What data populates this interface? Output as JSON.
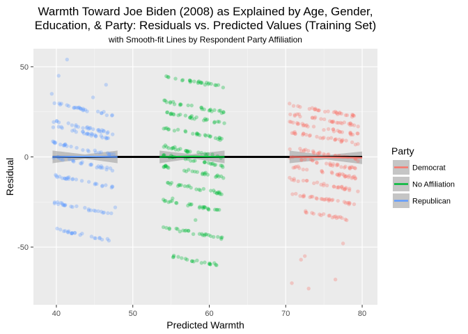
{
  "chart_data": {
    "type": "scatter",
    "title_lines": [
      "Warmth Toward Joe Biden (2008) as Explained by Age, Gender,",
      "Education, & Party: Residuals vs. Predicted Values (Training Set)"
    ],
    "subtitle": "with Smooth-fit Lines by Respondent Party Affiliation",
    "xlabel": "Predicted Warmth",
    "ylabel": "Residual",
    "xlim": [
      37,
      82
    ],
    "ylim": [
      -82,
      60
    ],
    "x_ticks": [
      40,
      50,
      60,
      70,
      80
    ],
    "y_ticks": [
      -50,
      0,
      50
    ],
    "x_tick_labels": [
      "40",
      "50",
      "60",
      "70",
      "80"
    ],
    "y_tick_labels": [
      "-50",
      "0",
      "50"
    ],
    "grid": true,
    "legend": {
      "title": "Party",
      "position": "right",
      "entries": [
        "Democrat",
        "No Affiliation",
        "Republican"
      ]
    },
    "reference_line": {
      "y": 0,
      "color": "#000000"
    },
    "series": [
      {
        "name": "Democrat",
        "color": "#F8766D",
        "x_range": [
          70.5,
          80
        ],
        "smooth": [
          [
            70.5,
            0
          ],
          [
            75,
            -0.2
          ],
          [
            80,
            -0.5
          ]
        ],
        "band_halfwidth": [
          3.5,
          1.2,
          3.5
        ],
        "clusters": [
          {
            "x0": 70.5,
            "x1": 79.5,
            "y0": 29,
            "slope": -0.75
          },
          {
            "x0": 70.5,
            "x1": 79.5,
            "y0": 24,
            "slope": -0.75
          },
          {
            "x0": 70.5,
            "x1": 79.5,
            "y0": 19,
            "slope": -0.75
          },
          {
            "x0": 70.5,
            "x1": 79.5,
            "y0": 14,
            "slope": -0.75
          },
          {
            "x0": 70.5,
            "x1": 79.5,
            "y0": 5,
            "slope": -0.75
          },
          {
            "x0": 70.5,
            "x1": 79.5,
            "y0": 0,
            "slope": -0.75
          },
          {
            "x0": 70.5,
            "x1": 79.5,
            "y0": -5,
            "slope": -0.75
          },
          {
            "x0": 70.5,
            "x1": 79.5,
            "y0": -12,
            "slope": -0.75
          },
          {
            "x0": 70.5,
            "x1": 79.5,
            "y0": -20,
            "slope": -0.75
          },
          {
            "x0": 72,
            "x1": 78,
            "y0": -30,
            "slope": -0.75
          }
        ],
        "outliers": [
          [
            70.8,
            -70
          ],
          [
            72,
            -57
          ],
          [
            73,
            -73
          ],
          [
            76.5,
            -68
          ],
          [
            77.5,
            -48
          ],
          [
            72.5,
            -55
          ]
        ]
      },
      {
        "name": "No Affiliation",
        "color": "#00BA38",
        "x_range": [
          53.5,
          62
        ],
        "smooth": [
          [
            53.5,
            0
          ],
          [
            58,
            0.3
          ],
          [
            62,
            0
          ]
        ],
        "band_halfwidth": [
          3.5,
          1.2,
          3.5
        ],
        "clusters": [
          {
            "x0": 54,
            "x1": 62,
            "y0": 45,
            "slope": -0.8
          },
          {
            "x0": 54,
            "x1": 62,
            "y0": 31,
            "slope": -0.8
          },
          {
            "x0": 54,
            "x1": 62,
            "y0": 25,
            "slope": -0.8
          },
          {
            "x0": 54,
            "x1": 62,
            "y0": 16,
            "slope": -0.8
          },
          {
            "x0": 54,
            "x1": 62,
            "y0": 6,
            "slope": -0.8
          },
          {
            "x0": 54,
            "x1": 62,
            "y0": 1,
            "slope": -0.8
          },
          {
            "x0": 54,
            "x1": 62,
            "y0": -5,
            "slope": -0.8
          },
          {
            "x0": 54,
            "x1": 62,
            "y0": -14,
            "slope": -0.8
          },
          {
            "x0": 54,
            "x1": 62,
            "y0": -24,
            "slope": -0.8
          },
          {
            "x0": 54,
            "x1": 62,
            "y0": -39,
            "slope": -0.8
          },
          {
            "x0": 55,
            "x1": 61,
            "y0": -55,
            "slope": -0.8
          }
        ],
        "outliers": [
          [
            58.2,
            -35
          ],
          [
            57.1,
            -57
          ],
          [
            55.2,
            -23
          ]
        ]
      },
      {
        "name": "Republican",
        "color": "#619CFF",
        "x_range": [
          39.5,
          48
        ],
        "smooth": [
          [
            39.5,
            0
          ],
          [
            44,
            0.2
          ],
          [
            48,
            0
          ]
        ],
        "band_halfwidth": [
          3.5,
          1.2,
          3.5
        ],
        "clusters": [
          {
            "x0": 39.5,
            "x1": 47.5,
            "y0": 30,
            "slope": -0.9
          },
          {
            "x0": 39.5,
            "x1": 47.5,
            "y0": 20,
            "slope": -0.9
          },
          {
            "x0": 39.5,
            "x1": 47.5,
            "y0": 17,
            "slope": -0.9
          },
          {
            "x0": 39.5,
            "x1": 47.5,
            "y0": 8,
            "slope": -0.9
          },
          {
            "x0": 39.5,
            "x1": 47.5,
            "y0": 0,
            "slope": -0.9
          },
          {
            "x0": 39.5,
            "x1": 47.5,
            "y0": -10,
            "slope": -0.9
          },
          {
            "x0": 39.5,
            "x1": 47.5,
            "y0": -25,
            "slope": -0.9
          },
          {
            "x0": 40,
            "x1": 47,
            "y0": -40,
            "slope": -0.9
          }
        ],
        "outliers": [
          [
            41.4,
            54
          ],
          [
            40.3,
            45
          ],
          [
            39.4,
            35
          ],
          [
            46.5,
            40
          ],
          [
            44.8,
            33
          ],
          [
            46.2,
            25
          ],
          [
            47.7,
            -28
          ],
          [
            45,
            -45
          ]
        ]
      }
    ]
  }
}
